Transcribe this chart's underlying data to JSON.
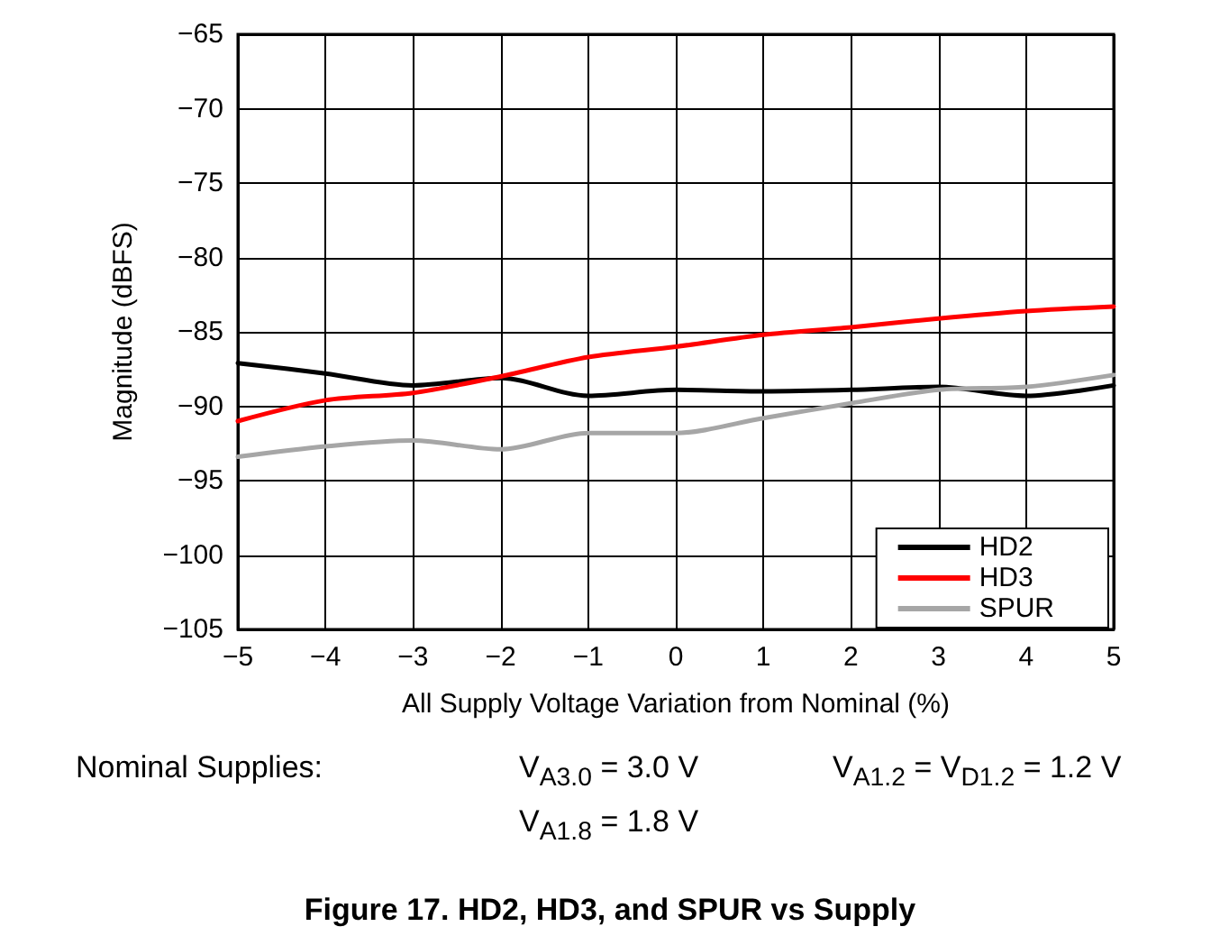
{
  "chart_data": {
    "type": "line",
    "title": "Figure 17. HD2, HD3, and SPUR vs Supply",
    "xlabel": "All Supply Voltage Variation from Nominal (%)",
    "ylabel": "Magnitude (dBFS)",
    "x": [
      -5,
      -4,
      -3,
      -2,
      -1,
      0,
      1,
      2,
      3,
      4,
      5
    ],
    "series": [
      {
        "name": "HD2",
        "color": "#000000",
        "values": [
          -87.1,
          -87.8,
          -88.6,
          -88.1,
          -89.3,
          -88.9,
          -89.0,
          -88.9,
          -88.7,
          -89.3,
          -88.6
        ]
      },
      {
        "name": "HD3",
        "color": "#ff0000",
        "values": [
          -91.0,
          -89.6,
          -89.1,
          -88.0,
          -86.7,
          -86.0,
          -85.2,
          -84.7,
          -84.1,
          -83.6,
          -83.3
        ]
      },
      {
        "name": "SPUR",
        "color": "#a6a6a6",
        "values": [
          -93.4,
          -92.7,
          -92.3,
          -92.9,
          -91.8,
          -91.8,
          -90.8,
          -89.8,
          -88.9,
          -88.7,
          -87.9
        ]
      }
    ],
    "xlim": [
      -5,
      5
    ],
    "xticks": [
      {
        "value": -5,
        "label": "−5"
      },
      {
        "value": -4,
        "label": "−4"
      },
      {
        "value": -3,
        "label": "−3"
      },
      {
        "value": -2,
        "label": "−2"
      },
      {
        "value": -1,
        "label": "−1"
      },
      0,
      1,
      2,
      3,
      4,
      5
    ],
    "ylim": [
      -105,
      -65
    ],
    "yticks": [
      {
        "value": -105,
        "label": "−105"
      },
      {
        "value": -100,
        "label": "−100"
      },
      {
        "value": -95,
        "label": "−95"
      },
      {
        "value": -90,
        "label": "−90"
      },
      {
        "value": -85,
        "label": "−85"
      },
      {
        "value": -80,
        "label": "−80"
      },
      {
        "value": -75,
        "label": "−75"
      },
      {
        "value": -70,
        "label": "−70"
      },
      {
        "value": -65,
        "label": "−65"
      }
    ],
    "annotations": [
      "Nominal Supplies:",
      "V$_{A3.0}$ = 3.0 V",
      "V$_{A1.2}$ = V$_{D1.2}$ = 1.2 V",
      "V$_{A1.8}$ = 1.8 V"
    ],
    "grid": true,
    "legend": "bottom right",
    "marker": "none",
    "line_style": "solid"
  }
}
